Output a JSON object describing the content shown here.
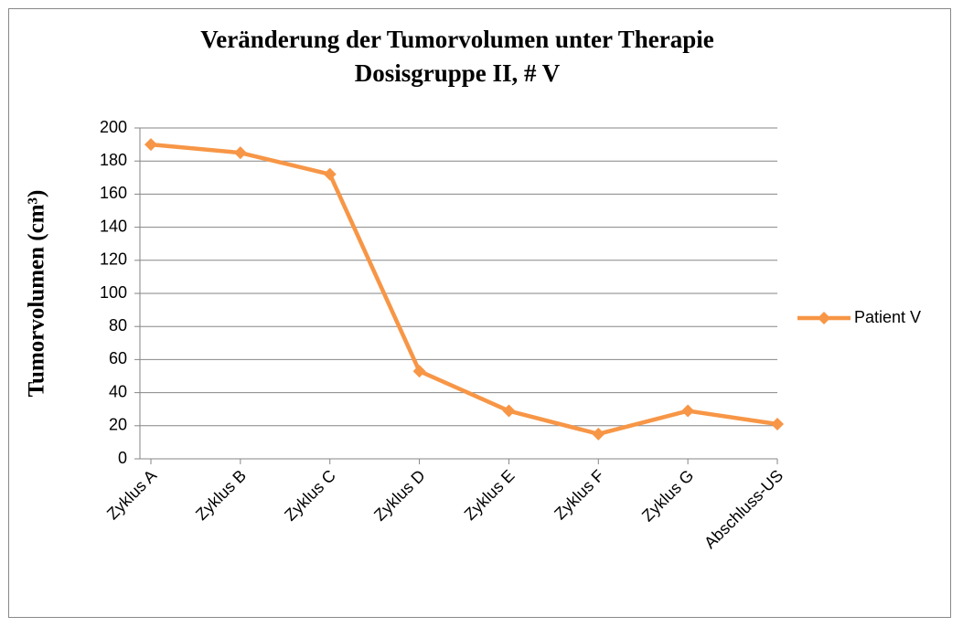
{
  "chart_data": {
    "type": "line",
    "title": "Veränderung der Tumorvolumen unter Therapie",
    "subtitle": "Dosisgruppe II,  # V",
    "y_label": "Tumorvolumen (cm³)",
    "categories": [
      "Zyklus A",
      "Zyklus B",
      "Zyklus C",
      "Zyklus D",
      "Zyklus E",
      "Zyklus F",
      "Zyklus G",
      "Abschluss-US"
    ],
    "series": [
      {
        "name": "Patient V",
        "color": "#f79646",
        "values": [
          190,
          185,
          172,
          53,
          29,
          15,
          29,
          21
        ]
      }
    ],
    "ylim": [
      0,
      200
    ],
    "yticks": [
      0,
      20,
      40,
      60,
      80,
      100,
      120,
      140,
      160,
      180,
      200
    ],
    "grid": true,
    "legend": "right"
  }
}
